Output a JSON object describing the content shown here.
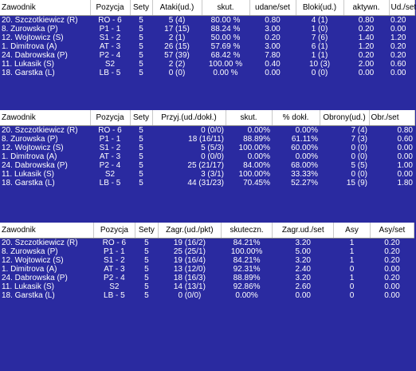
{
  "tables": [
    {
      "headers": [
        "Zawodnik",
        "Pozycja",
        "Sety",
        "Ataki(ud.)",
        "skut.",
        "udane/set",
        "Bloki(ud.)",
        "aktywn.",
        "Ud./set"
      ],
      "rows": [
        [
          "20. Szczotkiewicz (R)",
          "RO - 6",
          "5",
          "5 (4)",
          "80.00 %",
          "0.80",
          "4 (1)",
          "0.80",
          "0.20"
        ],
        [
          "8. Zurowska (P)",
          "P1 - 1",
          "5",
          "17 (15)",
          "88.24 %",
          "3.00",
          "1 (0)",
          "0.20",
          "0.00"
        ],
        [
          "12. Wojtowicz (S)",
          "S1 - 2",
          "5",
          "2 (1)",
          "50.00 %",
          "0.20",
          "7 (6)",
          "1.40",
          "1.20"
        ],
        [
          "1. Dimitrova (A)",
          "AT - 3",
          "5",
          "26 (15)",
          "57.69 %",
          "3.00",
          "6 (1)",
          "1.20",
          "0.20"
        ],
        [
          "24. Dabrowska (P)",
          "P2 - 4",
          "5",
          "57 (39)",
          "68.42 %",
          "7.80",
          "1 (1)",
          "0.20",
          "0.20"
        ],
        [
          "11. Lukasik (S)",
          "S2",
          "5",
          "2 (2)",
          "100.00 %",
          "0.40",
          "10 (3)",
          "2.00",
          "0.60"
        ],
        [
          "18. Garstka (L)",
          "LB - 5",
          "5",
          "0 (0)",
          "0.00 %",
          "0.00",
          "0 (0)",
          "0.00",
          "0.00"
        ]
      ]
    },
    {
      "headers": [
        "Zawodnik",
        "Pozycja",
        "Sety",
        "Przyj.(ud./dokł.)",
        "skut.",
        "% dokł.",
        "Obrony(ud.)",
        "Obr./set"
      ],
      "rows": [
        [
          "20. Szczotkiewicz (R)",
          "RO - 6",
          "5",
          "0 (0/0)",
          "0.00%",
          "0.00%",
          "7 (4)",
          "0.80"
        ],
        [
          "8. Zurowska (P)",
          "P1 - 1",
          "5",
          "18 (16/11)",
          "88.89%",
          "61.11%",
          "7 (3)",
          "0.60"
        ],
        [
          "12. Wojtowicz (S)",
          "S1 - 2",
          "5",
          "5 (5/3)",
          "100.00%",
          "60.00%",
          "0 (0)",
          "0.00"
        ],
        [
          "1. Dimitrova (A)",
          "AT - 3",
          "5",
          "0 (0/0)",
          "0.00%",
          "0.00%",
          "0 (0)",
          "0.00"
        ],
        [
          "24. Dabrowska (P)",
          "P2 - 4",
          "5",
          "25 (21/17)",
          "84.00%",
          "68.00%",
          "5 (5)",
          "1.00"
        ],
        [
          "11. Lukasik (S)",
          "S2",
          "5",
          "3 (3/1)",
          "100.00%",
          "33.33%",
          "0 (0)",
          "0.00"
        ],
        [
          "18. Garstka (L)",
          "LB - 5",
          "5",
          "44 (31/23)",
          "70.45%",
          "52.27%",
          "15 (9)",
          "1.80"
        ]
      ]
    },
    {
      "headers": [
        "Zawodnik",
        "Pozycja",
        "Sety",
        "Zagr.(ud./pkt)",
        "skuteczn.",
        "Zagr.ud./set",
        "Asy",
        "Asy/set"
      ],
      "rows": [
        [
          "20. Szczotkiewicz (R)",
          "RO - 6",
          "5",
          "19 (16/2)",
          "84.21%",
          "3.20",
          "1",
          "0.20"
        ],
        [
          "8. Zurowska (P)",
          "P1 - 1",
          "5",
          "25 (25/1)",
          "100.00%",
          "5.00",
          "1",
          "0.20"
        ],
        [
          "12. Wojtowicz (S)",
          "S1 - 2",
          "5",
          "19 (16/4)",
          "84.21%",
          "3.20",
          "1",
          "0.20"
        ],
        [
          "1. Dimitrova (A)",
          "AT - 3",
          "5",
          "13 (12/0)",
          "92.31%",
          "2.40",
          "0",
          "0.00"
        ],
        [
          "24. Dabrowska (P)",
          "P2 - 4",
          "5",
          "18 (16/3)",
          "88.89%",
          "3.20",
          "1",
          "0.20"
        ],
        [
          "11. Lukasik (S)",
          "S2",
          "5",
          "14 (13/1)",
          "92.86%",
          "2.60",
          "0",
          "0.00"
        ],
        [
          "18. Garstka (L)",
          "LB - 5",
          "5",
          "0 (0/0)",
          "0.00%",
          "0.00",
          "0",
          "0.00"
        ]
      ]
    }
  ]
}
